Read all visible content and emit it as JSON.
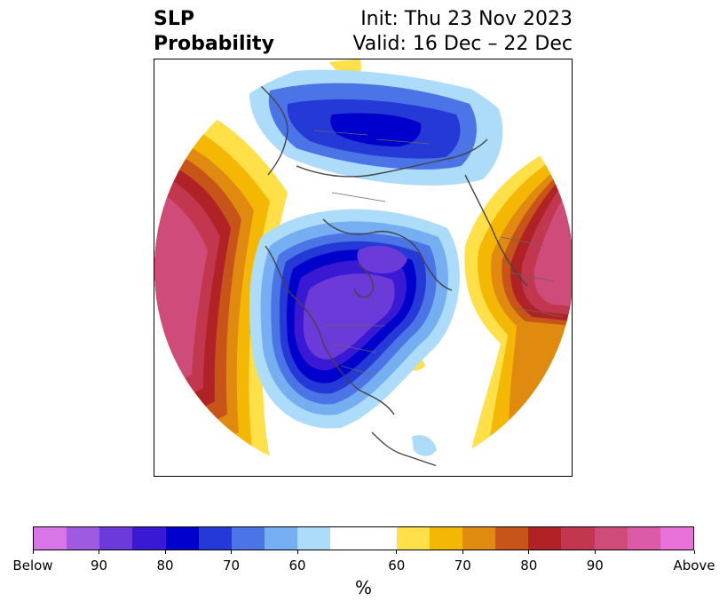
{
  "title": {
    "left_line1": "SLP",
    "left_line2": "Probability",
    "right_line1": "Init: Thu 23 Nov 2023",
    "right_line2": "Valid: 16 Dec – 22 Dec"
  },
  "colorbar": {
    "unit": "%",
    "tick_labels": [
      "Below",
      "90",
      "80",
      "70",
      "60",
      "60",
      "70",
      "80",
      "90",
      "Above"
    ],
    "below_colors": [
      "#d876e8",
      "#9f5ae2",
      "#6b3ad8",
      "#3a19d4",
      "#0000cc",
      "#2439d6",
      "#4b74e6",
      "#76aef2",
      "#acdcfa"
    ],
    "neutral_color": "#ffffff",
    "above_colors": [
      "#ffe049",
      "#f3b704",
      "#e08b10",
      "#c75418",
      "#b02226",
      "#c2374e",
      "#cf4b7a",
      "#dc5ba6",
      "#e872d8"
    ]
  },
  "map": {
    "projection": "north-polar-stereographic",
    "field": "sea-level-pressure tercile probability"
  }
}
